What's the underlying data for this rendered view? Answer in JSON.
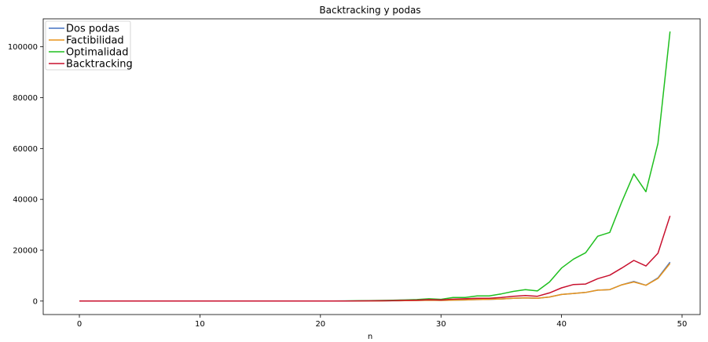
{
  "chart_data": {
    "type": "line",
    "title": "Backtracking y podas",
    "xlabel": "n",
    "ylabel": "",
    "xlim": [
      -3,
      51.5
    ],
    "ylim": [
      -5300,
      111000
    ],
    "xticks": [
      0,
      10,
      20,
      30,
      40,
      50
    ],
    "yticks": [
      0,
      20000,
      40000,
      60000,
      80000,
      100000
    ],
    "grid": false,
    "legend_position": "top-left",
    "x": [
      0,
      1,
      2,
      3,
      4,
      5,
      6,
      7,
      8,
      9,
      10,
      11,
      12,
      13,
      14,
      15,
      16,
      17,
      18,
      19,
      20,
      21,
      22,
      23,
      24,
      25,
      26,
      27,
      28,
      29,
      30,
      31,
      32,
      33,
      34,
      35,
      36,
      37,
      38,
      39,
      40,
      41,
      42,
      43,
      44,
      45,
      46,
      47,
      48,
      49
    ],
    "series": [
      {
        "name": "Dos podas",
        "color": "#4472c4",
        "values": [
          0,
          0,
          0,
          0,
          0,
          0,
          0,
          0,
          0,
          0,
          0,
          0,
          0,
          0,
          0,
          0,
          0,
          0,
          0,
          0,
          0,
          10,
          20,
          40,
          60,
          80,
          120,
          160,
          220,
          300,
          250,
          380,
          450,
          600,
          700,
          850,
          1100,
          1250,
          1100,
          1600,
          2600,
          3000,
          3400,
          4300,
          4500,
          6400,
          7700,
          6200,
          9100,
          15300
        ]
      },
      {
        "name": "Factibilidad",
        "color": "#e8941a",
        "values": [
          0,
          0,
          0,
          0,
          0,
          0,
          0,
          0,
          0,
          0,
          0,
          0,
          0,
          0,
          0,
          0,
          0,
          0,
          0,
          0,
          0,
          10,
          20,
          40,
          60,
          80,
          120,
          160,
          220,
          300,
          250,
          380,
          450,
          600,
          700,
          850,
          1100,
          1250,
          1100,
          1600,
          2600,
          3000,
          3400,
          4300,
          4500,
          6400,
          7500,
          6200,
          8900,
          14800
        ]
      },
      {
        "name": "Optimalidad",
        "color": "#1fbf1f",
        "values": [
          0,
          0,
          0,
          0,
          0,
          0,
          0,
          0,
          0,
          0,
          0,
          0,
          0,
          0,
          0,
          0,
          0,
          0,
          0,
          0,
          10,
          30,
          60,
          120,
          180,
          260,
          350,
          450,
          600,
          900,
          700,
          1400,
          1400,
          2000,
          2000,
          2800,
          3800,
          4500,
          4000,
          7500,
          13000,
          16500,
          19000,
          25500,
          27000,
          39000,
          50000,
          43000,
          62000,
          106000
        ]
      },
      {
        "name": "Backtracking",
        "color": "#c8102e",
        "values": [
          0,
          0,
          0,
          0,
          0,
          0,
          0,
          0,
          0,
          0,
          0,
          0,
          0,
          0,
          0,
          0,
          0,
          0,
          0,
          0,
          0,
          10,
          30,
          60,
          100,
          140,
          200,
          280,
          380,
          550,
          450,
          750,
          900,
          1100,
          1100,
          1400,
          1900,
          2200,
          1900,
          3200,
          5200,
          6500,
          6700,
          8800,
          10200,
          13000,
          16000,
          13800,
          18800,
          33500
        ]
      }
    ]
  }
}
